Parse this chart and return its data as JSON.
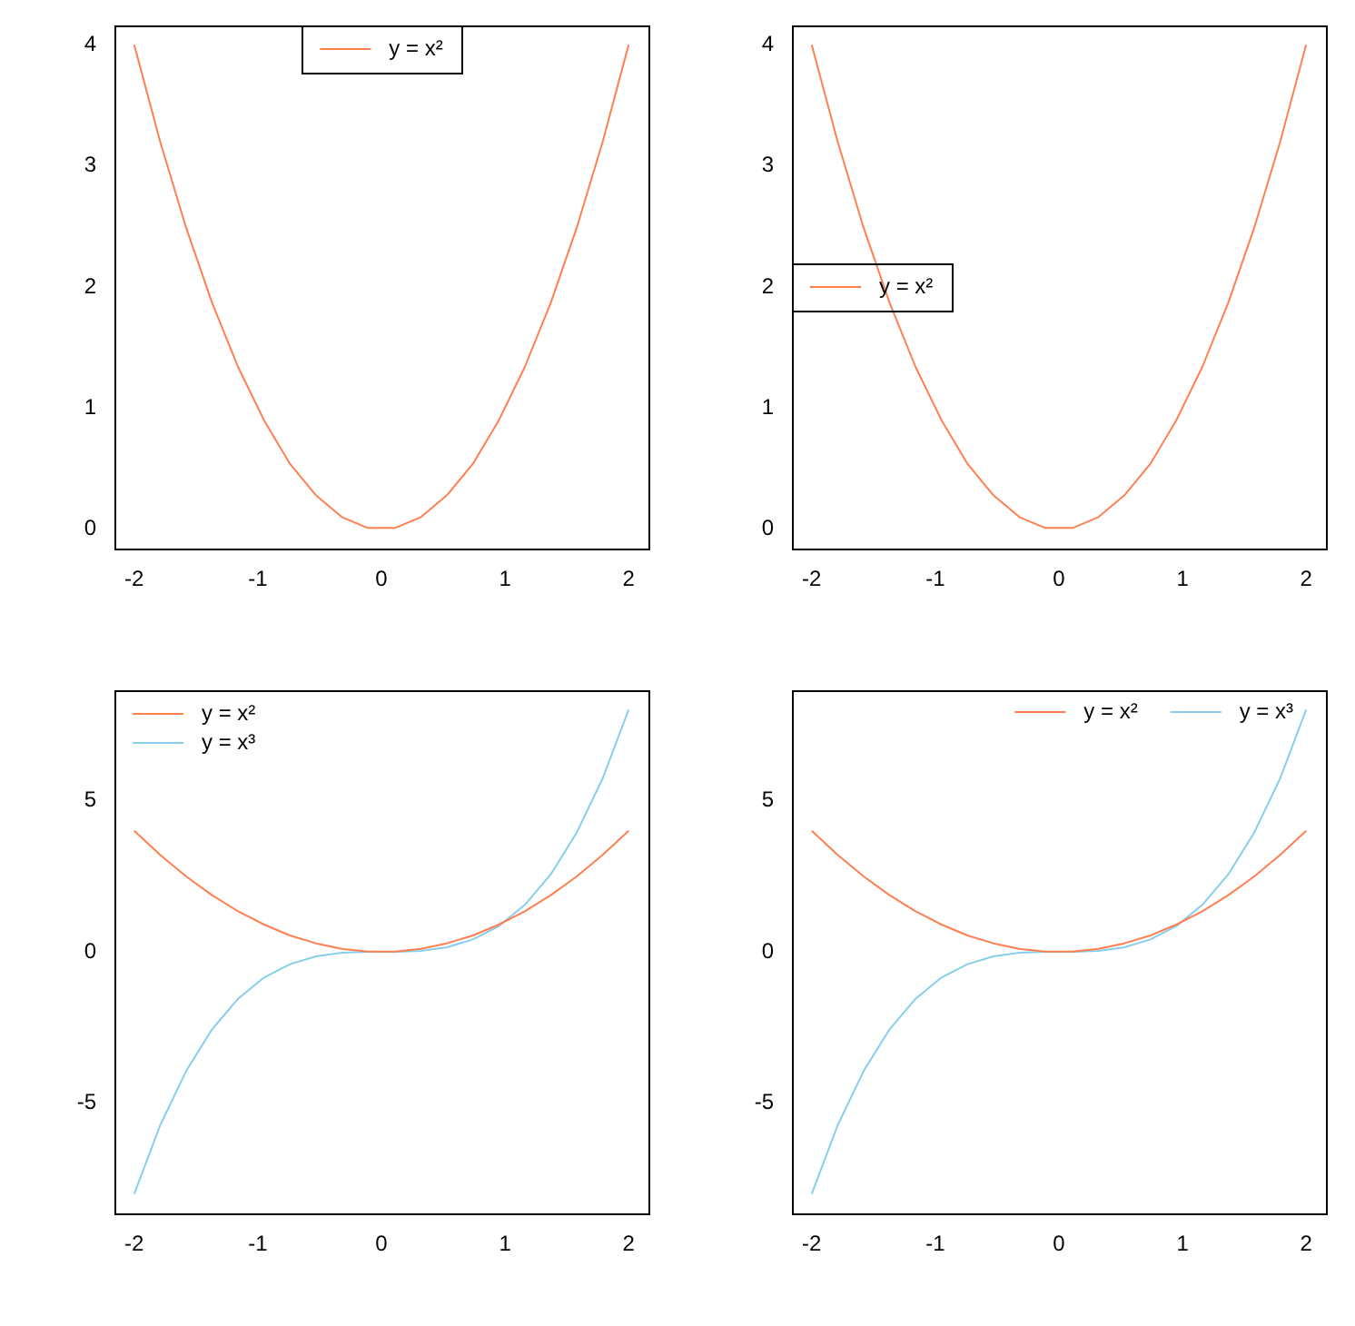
{
  "chart_data": [
    {
      "type": "line",
      "x": [
        -2,
        -1.79,
        -1.58,
        -1.37,
        -1.16,
        -0.95,
        -0.74,
        -0.53,
        -0.32,
        -0.11,
        0.11,
        0.32,
        0.53,
        0.74,
        0.95,
        1.16,
        1.37,
        1.58,
        1.79,
        2
      ],
      "series": [
        {
          "name": "y = x²",
          "color": "#ff7f50",
          "values": [
            4,
            3.2,
            2.49,
            1.87,
            1.34,
            0.9,
            0.54,
            0.28,
            0.1,
            0.01,
            0.01,
            0.1,
            0.28,
            0.54,
            0.9,
            1.34,
            1.87,
            2.49,
            3.2,
            4
          ]
        }
      ],
      "xlim": [
        -2.16,
        2.16
      ],
      "xticks": [
        -2,
        -1,
        0,
        1,
        2
      ],
      "ylim": [
        -0.16,
        4.16
      ],
      "yticks": [
        0,
        1,
        2,
        3,
        4
      ],
      "legend": "top"
    },
    {
      "type": "line",
      "x": [
        -2,
        -1.79,
        -1.58,
        -1.37,
        -1.16,
        -0.95,
        -0.74,
        -0.53,
        -0.32,
        -0.11,
        0.11,
        0.32,
        0.53,
        0.74,
        0.95,
        1.16,
        1.37,
        1.58,
        1.79,
        2
      ],
      "series": [
        {
          "name": "y = x²",
          "color": "#ff7f50",
          "values": [
            4,
            3.2,
            2.49,
            1.87,
            1.34,
            0.9,
            0.54,
            0.28,
            0.1,
            0.01,
            0.01,
            0.1,
            0.28,
            0.54,
            0.9,
            1.34,
            1.87,
            2.49,
            3.2,
            4
          ]
        }
      ],
      "xlim": [
        -2.16,
        2.16
      ],
      "xticks": [
        -2,
        -1,
        0,
        1,
        2
      ],
      "ylim": [
        -0.16,
        4.16
      ],
      "yticks": [
        0,
        1,
        2,
        3,
        4
      ],
      "legend": "left"
    },
    {
      "type": "line",
      "x": [
        -2,
        -1.79,
        -1.58,
        -1.37,
        -1.16,
        -0.95,
        -0.74,
        -0.53,
        -0.32,
        -0.11,
        0.11,
        0.32,
        0.53,
        0.74,
        0.95,
        1.16,
        1.37,
        1.58,
        1.79,
        2
      ],
      "series": [
        {
          "name": "y = x²",
          "color": "#ff7f50",
          "values": [
            4,
            3.2,
            2.49,
            1.87,
            1.34,
            0.9,
            0.54,
            0.28,
            0.1,
            0.01,
            0.01,
            0.1,
            0.28,
            0.54,
            0.9,
            1.34,
            1.87,
            2.49,
            3.2,
            4
          ]
        },
        {
          "name": "y = x³",
          "color": "#87ceeb",
          "values": [
            -8,
            -5.73,
            -3.94,
            -2.56,
            -1.55,
            -0.85,
            -0.41,
            -0.15,
            -0.03,
            0,
            0,
            0.03,
            0.15,
            0.41,
            0.85,
            1.55,
            2.56,
            3.94,
            5.73,
            8
          ]
        }
      ],
      "xlim": [
        -2.16,
        2.16
      ],
      "xticks": [
        -2,
        -1,
        0,
        1,
        2
      ],
      "ylim": [
        -8.64,
        8.64
      ],
      "yticks": [
        -5,
        0,
        5
      ],
      "legend": "top left"
    },
    {
      "type": "line",
      "x": [
        -2,
        -1.79,
        -1.58,
        -1.37,
        -1.16,
        -0.95,
        -0.74,
        -0.53,
        -0.32,
        -0.11,
        0.11,
        0.32,
        0.53,
        0.74,
        0.95,
        1.16,
        1.37,
        1.58,
        1.79,
        2
      ],
      "series": [
        {
          "name": "y = x²",
          "color": "#ff7f50",
          "values": [
            4,
            3.2,
            2.49,
            1.87,
            1.34,
            0.9,
            0.54,
            0.28,
            0.1,
            0.01,
            0.01,
            0.1,
            0.28,
            0.54,
            0.9,
            1.34,
            1.87,
            2.49,
            3.2,
            4
          ]
        },
        {
          "name": "y = x³",
          "color": "#87ceeb",
          "values": [
            -8,
            -5.73,
            -3.94,
            -2.56,
            -1.55,
            -0.85,
            -0.41,
            -0.15,
            -0.03,
            0,
            0,
            0.03,
            0.15,
            0.41,
            0.85,
            1.55,
            2.56,
            3.94,
            5.73,
            8
          ]
        }
      ],
      "xlim": [
        -2.16,
        2.16
      ],
      "xticks": [
        -2,
        -1,
        0,
        1,
        2
      ],
      "ylim": [
        -8.64,
        8.64
      ],
      "yticks": [
        -5,
        0,
        5
      ],
      "legend": "top right"
    }
  ]
}
